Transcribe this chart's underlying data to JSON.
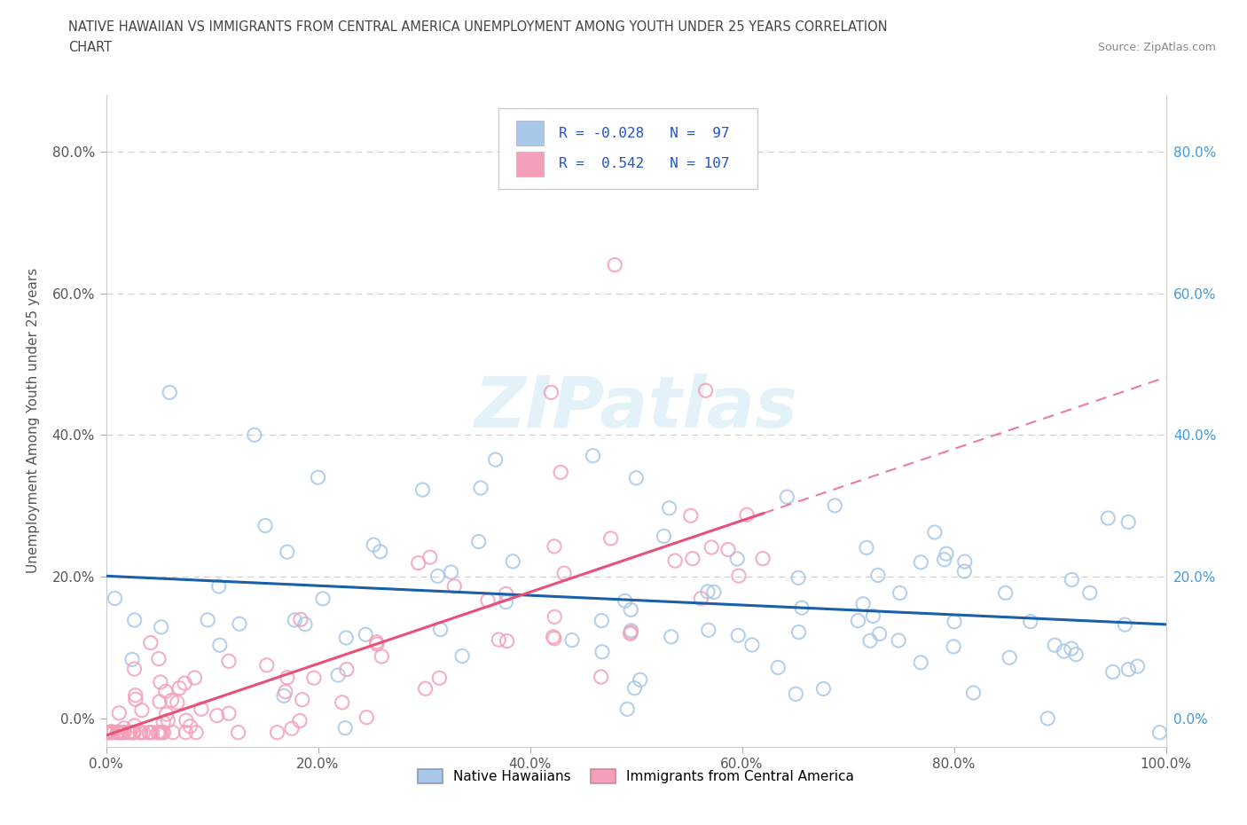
{
  "title_line1": "NATIVE HAWAIIAN VS IMMIGRANTS FROM CENTRAL AMERICA UNEMPLOYMENT AMONG YOUTH UNDER 25 YEARS CORRELATION",
  "title_line2": "CHART",
  "source": "Source: ZipAtlas.com",
  "ylabel": "Unemployment Among Youth under 25 years",
  "watermark": "ZIPatlas",
  "color_blue": "#a8c8e8",
  "color_pink": "#f4a0b8",
  "color_blue_line": "#1a5fa8",
  "color_pink_line": "#e8507a",
  "background_color": "#ffffff",
  "grid_color": "#cccccc",
  "right_axis_color": "#4499dd",
  "R1": "-0.028",
  "N1": "97",
  "R2": "0.542",
  "N2": "107",
  "seed": 12345
}
